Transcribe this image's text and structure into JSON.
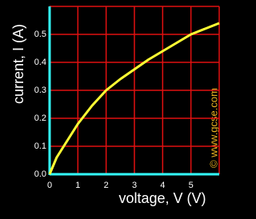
{
  "chart_data": {
    "type": "line",
    "x_label": "voltage, V (V)",
    "y_label": "current, I (A)",
    "watermark": "© www.gcse.com",
    "x": [
      0,
      0.25,
      0.5,
      1,
      1.5,
      2,
      2.5,
      3,
      3.5,
      4,
      4.5,
      5,
      5.5,
      6
    ],
    "series": [
      {
        "color": "#ffff33",
        "values": [
          0,
          0.06,
          0.1,
          0.18,
          0.245,
          0.3,
          0.34,
          0.375,
          0.41,
          0.44,
          0.47,
          0.5,
          0.52,
          0.54
        ]
      }
    ],
    "xlim": [
      0,
      6
    ],
    "ylim": [
      0,
      0.6
    ],
    "xticks": [
      0,
      1,
      2,
      3,
      4,
      5
    ],
    "yticks": [
      {
        "value": 0,
        "label": "0.0"
      },
      0.1,
      0.2,
      0.3,
      0.4,
      0.5
    ],
    "grid": true,
    "grid_color": "#e01010",
    "axis_color": "#33ffff"
  }
}
